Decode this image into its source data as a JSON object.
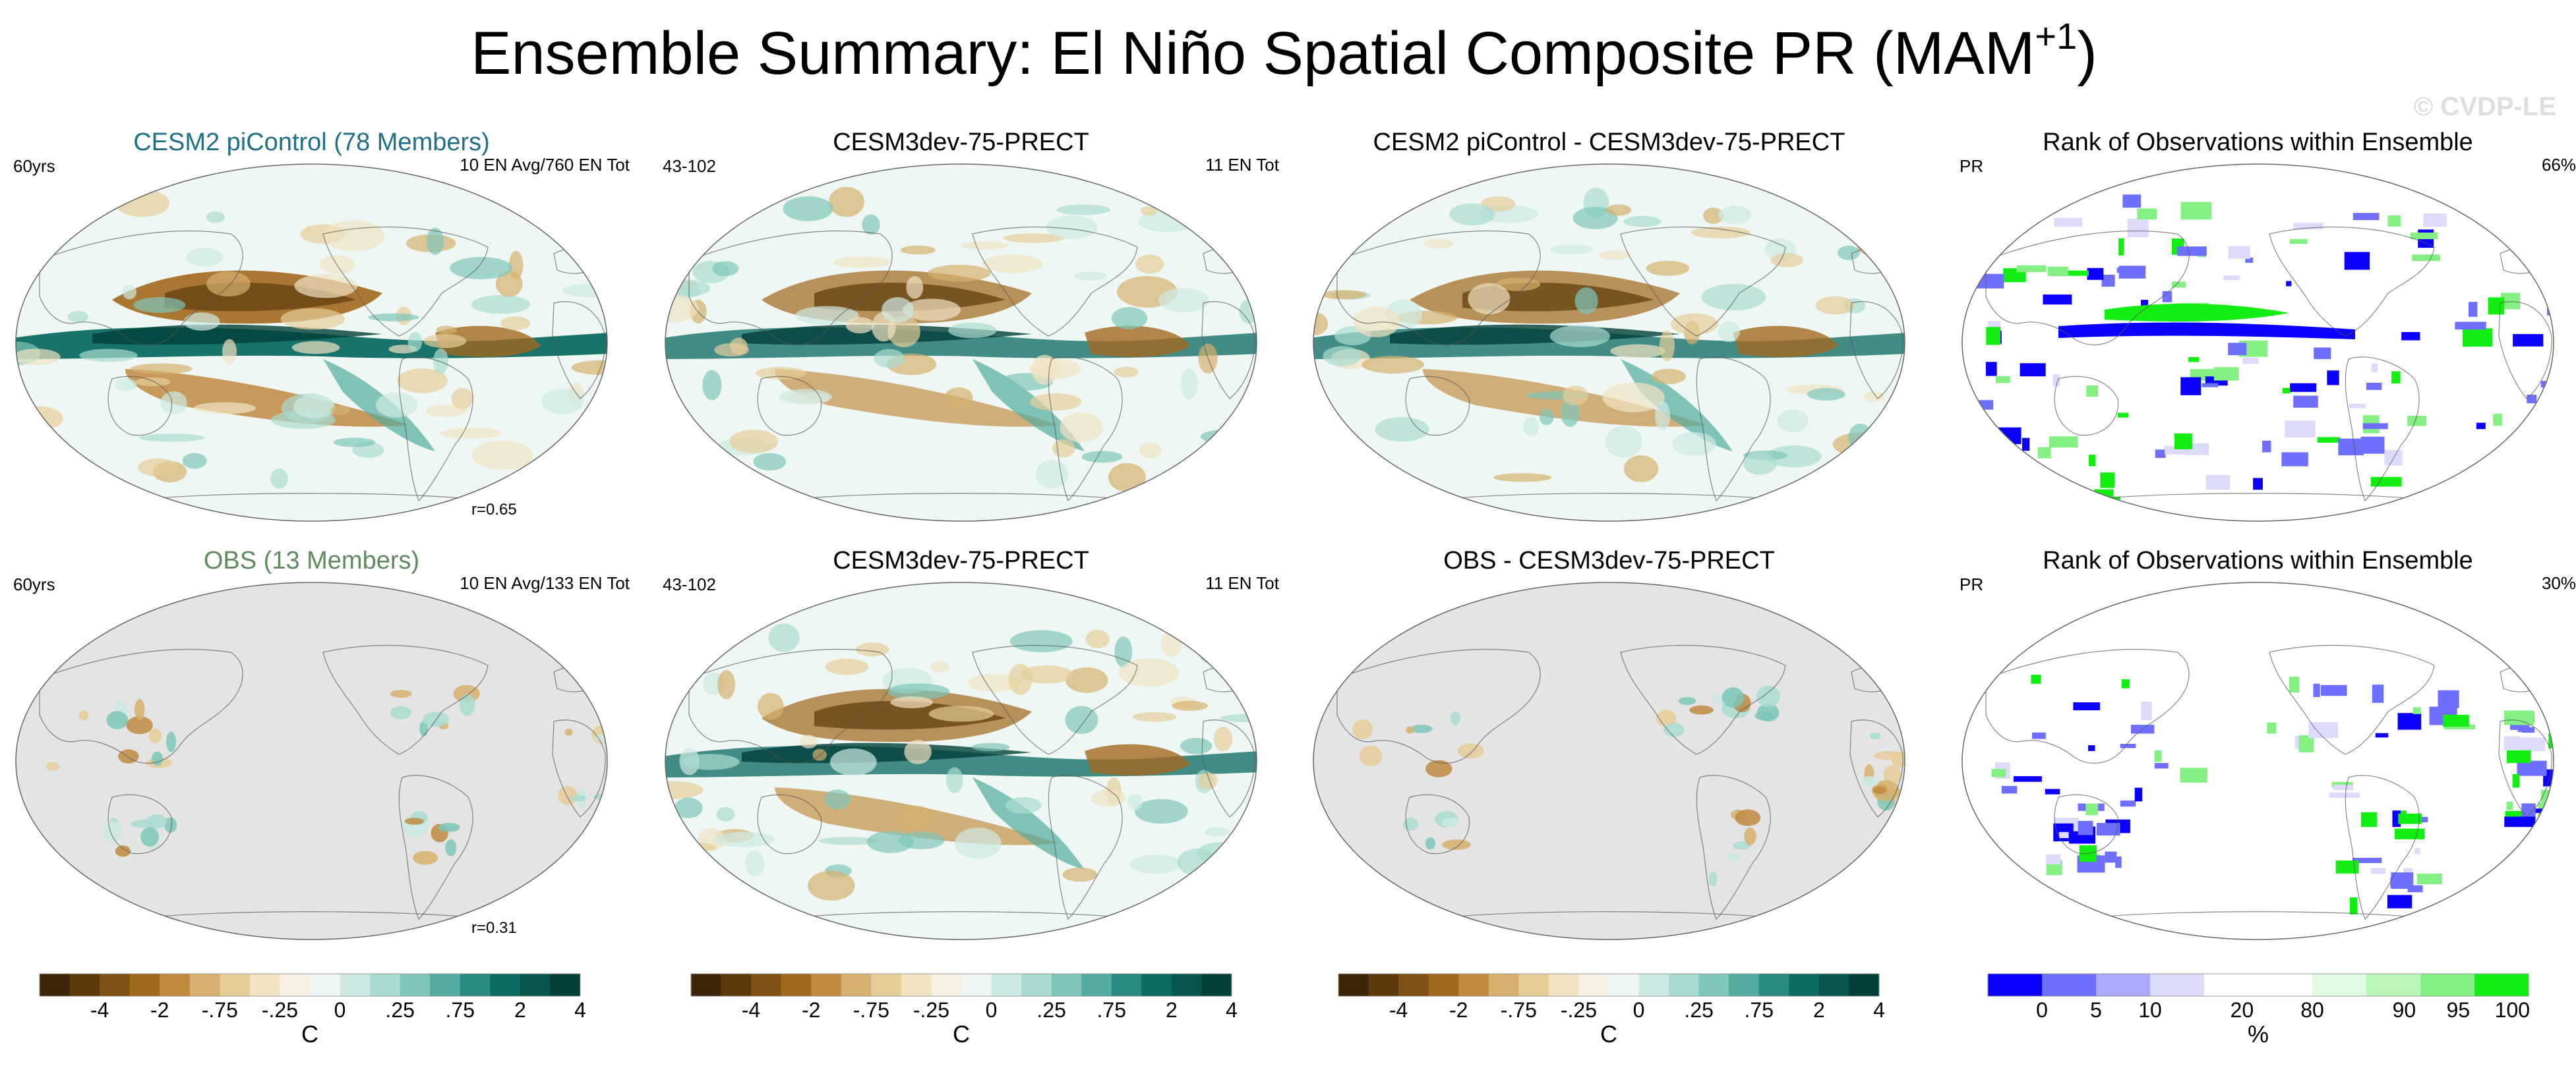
{
  "figure": {
    "title_main": "Ensemble Summary: El Niño Spatial Composite PR (MAM",
    "title_sup": "+1",
    "title_end": ")",
    "watermark": "© CVDP-LE"
  },
  "panels": [
    {
      "title": "CESM2 piControl (78 Members)",
      "title_color": "#1f6f86",
      "left_label": "60yrs",
      "right_label": "10 EN Avg/760 EN Tot",
      "r_label": "r=0.65",
      "kind": "model"
    },
    {
      "title": "CESM3dev-75-PRECT",
      "title_color": "#000000",
      "left_label": "43-102",
      "right_label": "11 EN Tot",
      "r_label": "",
      "kind": "model"
    },
    {
      "title": "CESM2 piControl - CESM3dev-75-PRECT",
      "title_color": "#000000",
      "left_label": "",
      "right_label": "",
      "r_label": "",
      "kind": "model"
    },
    {
      "title": "Rank of Observations within Ensemble",
      "title_color": "#000000",
      "left_label": "PR",
      "right_label": "66%",
      "r_label": "",
      "kind": "rank"
    },
    {
      "title": "OBS (13 Members)",
      "title_color": "#5e8a5e",
      "left_label": "60yrs",
      "right_label": "10 EN Avg/133 EN Tot",
      "r_label": "r=0.31",
      "kind": "obs"
    },
    {
      "title": "CESM3dev-75-PRECT",
      "title_color": "#000000",
      "left_label": "43-102",
      "right_label": "11 EN Tot",
      "r_label": "",
      "kind": "model"
    },
    {
      "title": "OBS - CESM3dev-75-PRECT",
      "title_color": "#000000",
      "left_label": "",
      "right_label": "",
      "r_label": "",
      "kind": "obs"
    },
    {
      "title": "Rank of Observations within Ensemble",
      "title_color": "#000000",
      "left_label": "PR",
      "right_label": "30%",
      "r_label": "",
      "kind": "rankobs"
    }
  ],
  "colorbars": {
    "diverging": {
      "colors": [
        "#3d2608",
        "#5c3a0c",
        "#7f5213",
        "#a2681e",
        "#c08a3f",
        "#d6b06c",
        "#e6cd98",
        "#f1e3c2",
        "#f8f1e2",
        "#eef7f4",
        "#cde9e3",
        "#a9dcd2",
        "#7ec6b9",
        "#52ab9e",
        "#288a80",
        "#0c6b62",
        "#05554c",
        "#033f38"
      ],
      "tick_labels": [
        "-4",
        "-2",
        "-.75",
        "-.25",
        "0",
        ".25",
        ".75",
        "2",
        "4"
      ],
      "unit": "C"
    },
    "rank": {
      "colors": [
        "#0b00ff",
        "#6f6fff",
        "#a9a9ff",
        "#dcdcfa",
        "#ffffff",
        "#ffffff",
        "#e0fbe0",
        "#b9f7b9",
        "#84f084",
        "#12ee12"
      ],
      "tick_labels": [
        "0",
        "5",
        "10",
        "20",
        "80",
        "90",
        "95",
        "100"
      ],
      "unit": "%"
    }
  }
}
